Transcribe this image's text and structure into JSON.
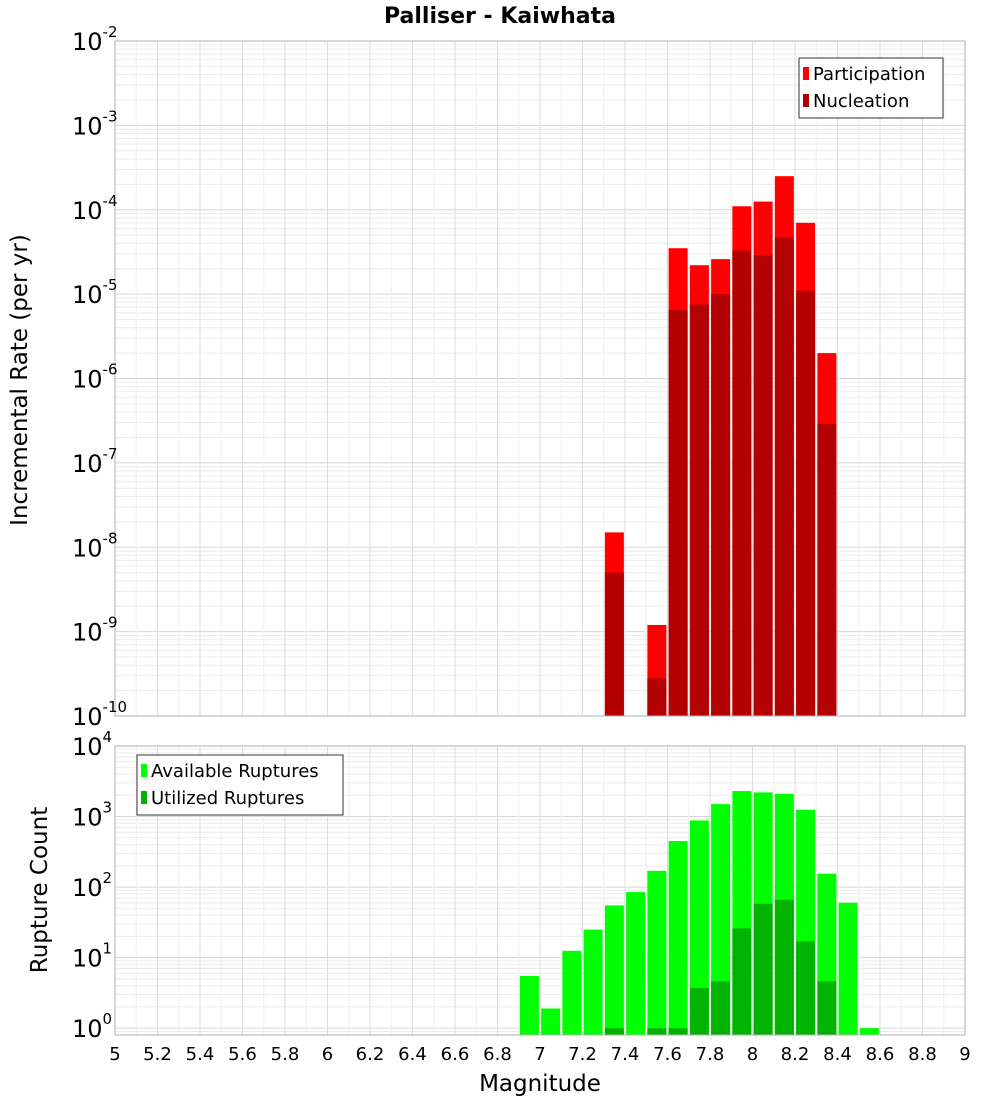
{
  "chart_data": [
    {
      "type": "bar",
      "title": "Palliser - Kaiwhata",
      "xlabel": "",
      "ylabel": "Incremental Rate (per yr)",
      "yscale": "log",
      "xlim": [
        5,
        9
      ],
      "ylim": [
        1e-10,
        0.01
      ],
      "grid": true,
      "legend_position": "top-right",
      "y_tick_labels": [
        {
          "base": "10",
          "exp": "-10"
        },
        {
          "base": "10",
          "exp": "-9"
        },
        {
          "base": "10",
          "exp": "-8"
        },
        {
          "base": "10",
          "exp": "-7"
        },
        {
          "base": "10",
          "exp": "-6"
        },
        {
          "base": "10",
          "exp": "-5"
        },
        {
          "base": "10",
          "exp": "-4"
        },
        {
          "base": "10",
          "exp": "-3"
        },
        {
          "base": "10",
          "exp": "-2"
        }
      ],
      "x": [
        7.35,
        7.55,
        7.65,
        7.75,
        7.85,
        7.95,
        8.05,
        8.15,
        8.25,
        8.35
      ],
      "series": [
        {
          "name": "Participation",
          "color": "#ff0000",
          "values": [
            1.5e-08,
            1.2e-09,
            3.5e-05,
            2.2e-05,
            2.6e-05,
            0.00011,
            0.000125,
            0.00025,
            7e-05,
            2e-06
          ]
        },
        {
          "name": "Nucleation",
          "color": "#b30000",
          "values": [
            5e-09,
            2.8e-10,
            6.5e-06,
            7.5e-06,
            1e-05,
            3.3e-05,
            2.9e-05,
            4.7e-05,
            1.1e-05,
            2.9e-07
          ]
        }
      ]
    },
    {
      "type": "bar",
      "title": "",
      "xlabel": "Magnitude",
      "ylabel": "Rupture Count",
      "yscale": "log",
      "xlim": [
        5,
        9
      ],
      "ylim": [
        0.8,
        10000
      ],
      "grid": true,
      "legend_position": "top-left",
      "x_tick_labels": [
        "5",
        "5.2",
        "5.4",
        "5.6",
        "5.8",
        "6",
        "6.2",
        "6.4",
        "6.6",
        "6.8",
        "7",
        "7.2",
        "7.4",
        "7.6",
        "7.8",
        "8",
        "8.2",
        "8.4",
        "8.6",
        "8.8",
        "9"
      ],
      "y_tick_labels": [
        {
          "base": "10",
          "exp": "0"
        },
        {
          "base": "10",
          "exp": "1"
        },
        {
          "base": "10",
          "exp": "2"
        },
        {
          "base": "10",
          "exp": "3"
        },
        {
          "base": "10",
          "exp": "4"
        }
      ],
      "x": [
        6.95,
        7.05,
        7.15,
        7.25,
        7.35,
        7.45,
        7.55,
        7.65,
        7.75,
        7.85,
        7.95,
        8.05,
        8.15,
        8.25,
        8.35,
        8.45,
        8.55
      ],
      "series": [
        {
          "name": "Available Ruptures",
          "color": "#00ff00",
          "values": [
            5.5,
            1.9,
            12.5,
            25,
            55,
            85,
            170,
            450,
            880,
            1500,
            2300,
            2200,
            2100,
            1250,
            155,
            60,
            1
          ]
        },
        {
          "name": "Utilized Ruptures",
          "color": "#00b300",
          "values": [
            0,
            0,
            0,
            0,
            1,
            0,
            1,
            1,
            3.7,
            4.6,
            26,
            58,
            66,
            17,
            4.6,
            0,
            0
          ]
        }
      ]
    }
  ]
}
